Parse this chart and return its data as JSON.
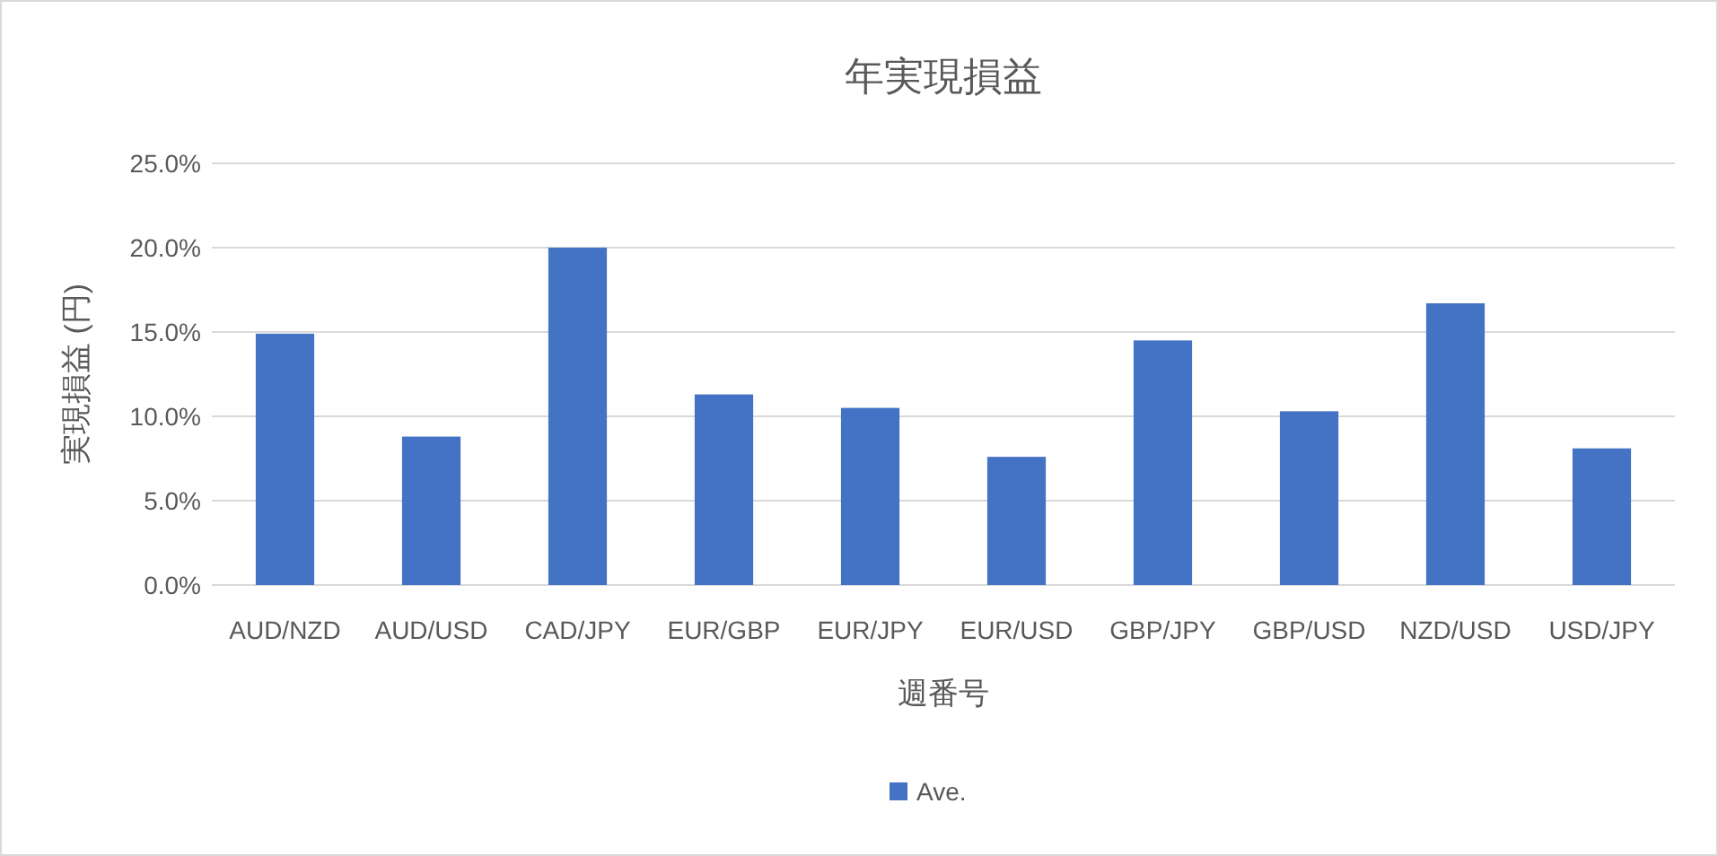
{
  "chart_data": {
    "type": "bar",
    "title": "年実現損益",
    "xlabel": "週番号",
    "ylabel": "実現損益 (円)",
    "categories": [
      "AUD/NZD",
      "AUD/USD",
      "CAD/JPY",
      "EUR/GBP",
      "EUR/JPY",
      "EUR/USD",
      "GBP/JPY",
      "GBP/USD",
      "NZD/USD",
      "USD/JPY"
    ],
    "series": [
      {
        "name": "Ave.",
        "color": "#4472c4",
        "values": [
          14.9,
          8.8,
          20.0,
          11.3,
          10.5,
          7.6,
          14.5,
          10.3,
          16.7,
          8.1
        ]
      }
    ],
    "ylim": [
      0,
      25
    ],
    "yticks": [
      {
        "value": 0,
        "label": "0.0%"
      },
      {
        "value": 5,
        "label": "5.0%"
      },
      {
        "value": 10,
        "label": "10.0%"
      },
      {
        "value": 15,
        "label": "15.0%"
      },
      {
        "value": 20,
        "label": "20.0%"
      },
      {
        "value": 25,
        "label": "25.0%"
      }
    ],
    "grid": "y",
    "legend": "bottom"
  }
}
